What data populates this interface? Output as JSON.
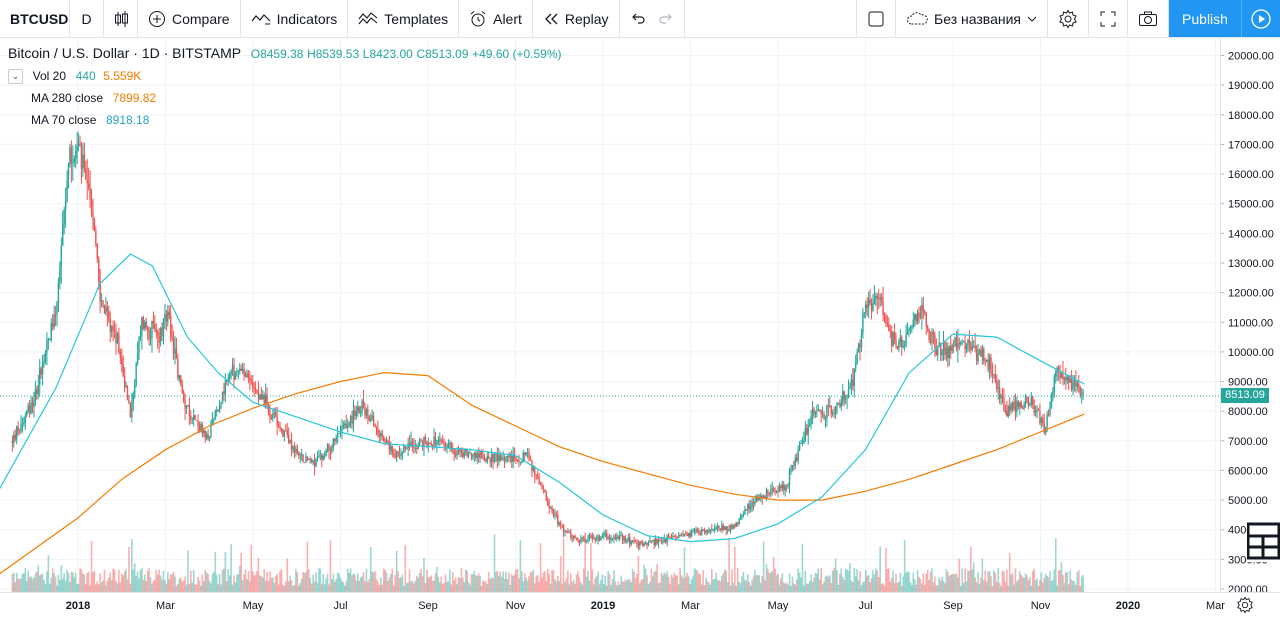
{
  "toolbar": {
    "symbol": "BTCUSD",
    "interval": "D",
    "compare": "Compare",
    "indicators": "Indicators",
    "templates": "Templates",
    "alert": "Alert",
    "replay": "Replay",
    "layout_name": "Без названия",
    "publish": "Publish"
  },
  "legend": {
    "title": "Bitcoin / U.S. Dollar · 1D · BITSTAMP",
    "open": "O8459.38",
    "high": "H8539.53",
    "low": "L8423.00",
    "close": "C8513.09",
    "change": "+49.60 (+0.59%)",
    "vol_label": "Vol 20",
    "vol_value": "440",
    "vol_ma": "5.559K",
    "ma280_label": "MA 280 close",
    "ma280_value": "7899.82",
    "ma70_label": "MA 70 close",
    "ma70_value": "8918.18"
  },
  "last_price": "8513.09",
  "colors": {
    "up": "#26a69a",
    "down": "#ef5350",
    "ma280": "#f57c00",
    "ma70": "#26c6da",
    "publish": "#2196f3"
  },
  "chart_data": {
    "type": "candlestick",
    "y_axis_ticks": [
      "20000.00",
      "19000.00",
      "18000.00",
      "17000.00",
      "16000.00",
      "15000.00",
      "14000.00",
      "13000.00",
      "12000.00",
      "11000.00",
      "10000.00",
      "9000.00",
      "8000.00",
      "7000.00",
      "6000.00",
      "5000.00",
      "4000.00",
      "3000.00",
      "2000.00"
    ],
    "x_axis_ticks": [
      "2018",
      "Mar",
      "May",
      "Jul",
      "Sep",
      "Nov",
      "2019",
      "Mar",
      "May",
      "Jul",
      "Sep",
      "Nov",
      "2020",
      "Mar"
    ],
    "ylim": [
      1800,
      20500
    ],
    "price_path": [
      {
        "m": -1.5,
        "p": 7000
      },
      {
        "m": -1.0,
        "p": 8500
      },
      {
        "m": -0.5,
        "p": 11500
      },
      {
        "m": -0.2,
        "p": 16500
      },
      {
        "m": 0.0,
        "p": 17000
      },
      {
        "m": 0.3,
        "p": 15000
      },
      {
        "m": 0.55,
        "p": 11500
      },
      {
        "m": 0.9,
        "p": 10500
      },
      {
        "m": 1.2,
        "p": 7800
      },
      {
        "m": 1.45,
        "p": 11000
      },
      {
        "m": 1.85,
        "p": 10500
      },
      {
        "m": 2.05,
        "p": 11200
      },
      {
        "m": 2.4,
        "p": 8400
      },
      {
        "m": 2.95,
        "p": 7000
      },
      {
        "m": 3.5,
        "p": 9400
      },
      {
        "m": 4.0,
        "p": 9000
      },
      {
        "m": 4.6,
        "p": 7500
      },
      {
        "m": 5.1,
        "p": 6400
      },
      {
        "m": 5.5,
        "p": 6300
      },
      {
        "m": 6.5,
        "p": 8200
      },
      {
        "m": 7.2,
        "p": 6600
      },
      {
        "m": 8.0,
        "p": 7000
      },
      {
        "m": 9.0,
        "p": 6500
      },
      {
        "m": 10.3,
        "p": 6400
      },
      {
        "m": 10.6,
        "p": 5400
      },
      {
        "m": 11.0,
        "p": 4200
      },
      {
        "m": 11.4,
        "p": 3600
      },
      {
        "m": 12.0,
        "p": 3800
      },
      {
        "m": 13.0,
        "p": 3500
      },
      {
        "m": 14.0,
        "p": 3900
      },
      {
        "m": 15.0,
        "p": 4100
      },
      {
        "m": 15.5,
        "p": 5100
      },
      {
        "m": 16.2,
        "p": 5500
      },
      {
        "m": 16.8,
        "p": 8000
      },
      {
        "m": 17.3,
        "p": 8000
      },
      {
        "m": 17.7,
        "p": 9000
      },
      {
        "m": 18.0,
        "p": 11500
      },
      {
        "m": 18.3,
        "p": 12000
      },
      {
        "m": 18.7,
        "p": 10000
      },
      {
        "m": 19.3,
        "p": 11500
      },
      {
        "m": 19.6,
        "p": 10000
      },
      {
        "m": 20.3,
        "p": 10300
      },
      {
        "m": 20.8,
        "p": 9700
      },
      {
        "m": 21.2,
        "p": 8100
      },
      {
        "m": 21.8,
        "p": 8300
      },
      {
        "m": 22.1,
        "p": 7400
      },
      {
        "m": 22.35,
        "p": 9400
      },
      {
        "m": 22.7,
        "p": 9000
      },
      {
        "m": 23.0,
        "p": 8513
      }
    ],
    "ma70": [
      {
        "m": -1.9,
        "p": 5100
      },
      {
        "m": -0.5,
        "p": 8800
      },
      {
        "m": 0.5,
        "p": 12300
      },
      {
        "m": 1.2,
        "p": 13300
      },
      {
        "m": 1.7,
        "p": 12900
      },
      {
        "m": 2.5,
        "p": 10500
      },
      {
        "m": 3.2,
        "p": 9300
      },
      {
        "m": 4.0,
        "p": 8300
      },
      {
        "m": 5.0,
        "p": 7800
      },
      {
        "m": 6.0,
        "p": 7300
      },
      {
        "m": 7.0,
        "p": 6900
      },
      {
        "m": 8.0,
        "p": 6800
      },
      {
        "m": 9.0,
        "p": 6700
      },
      {
        "m": 10.0,
        "p": 6500
      },
      {
        "m": 11.0,
        "p": 5600
      },
      {
        "m": 12.0,
        "p": 4500
      },
      {
        "m": 13.0,
        "p": 3800
      },
      {
        "m": 14.0,
        "p": 3600
      },
      {
        "m": 15.0,
        "p": 3700
      },
      {
        "m": 16.0,
        "p": 4200
      },
      {
        "m": 17.0,
        "p": 5100
      },
      {
        "m": 18.0,
        "p": 6700
      },
      {
        "m": 19.0,
        "p": 9300
      },
      {
        "m": 20.0,
        "p": 10600
      },
      {
        "m": 21.0,
        "p": 10500
      },
      {
        "m": 22.0,
        "p": 9700
      },
      {
        "m": 23.0,
        "p": 8918
      }
    ],
    "ma280": [
      {
        "m": -1.9,
        "p": 2400
      },
      {
        "m": 0.0,
        "p": 4400
      },
      {
        "m": 1.0,
        "p": 5700
      },
      {
        "m": 2.0,
        "p": 6700
      },
      {
        "m": 3.0,
        "p": 7500
      },
      {
        "m": 4.0,
        "p": 8100
      },
      {
        "m": 5.0,
        "p": 8600
      },
      {
        "m": 6.0,
        "p": 9000
      },
      {
        "m": 7.0,
        "p": 9300
      },
      {
        "m": 8.0,
        "p": 9200
      },
      {
        "m": 9.0,
        "p": 8200
      },
      {
        "m": 10.0,
        "p": 7500
      },
      {
        "m": 11.0,
        "p": 6800
      },
      {
        "m": 12.0,
        "p": 6300
      },
      {
        "m": 13.0,
        "p": 5900
      },
      {
        "m": 14.0,
        "p": 5500
      },
      {
        "m": 15.0,
        "p": 5200
      },
      {
        "m": 16.0,
        "p": 5000
      },
      {
        "m": 17.0,
        "p": 5000
      },
      {
        "m": 18.0,
        "p": 5300
      },
      {
        "m": 19.0,
        "p": 5700
      },
      {
        "m": 20.0,
        "p": 6200
      },
      {
        "m": 21.0,
        "p": 6700
      },
      {
        "m": 22.0,
        "p": 7300
      },
      {
        "m": 23.0,
        "p": 7900
      }
    ]
  }
}
